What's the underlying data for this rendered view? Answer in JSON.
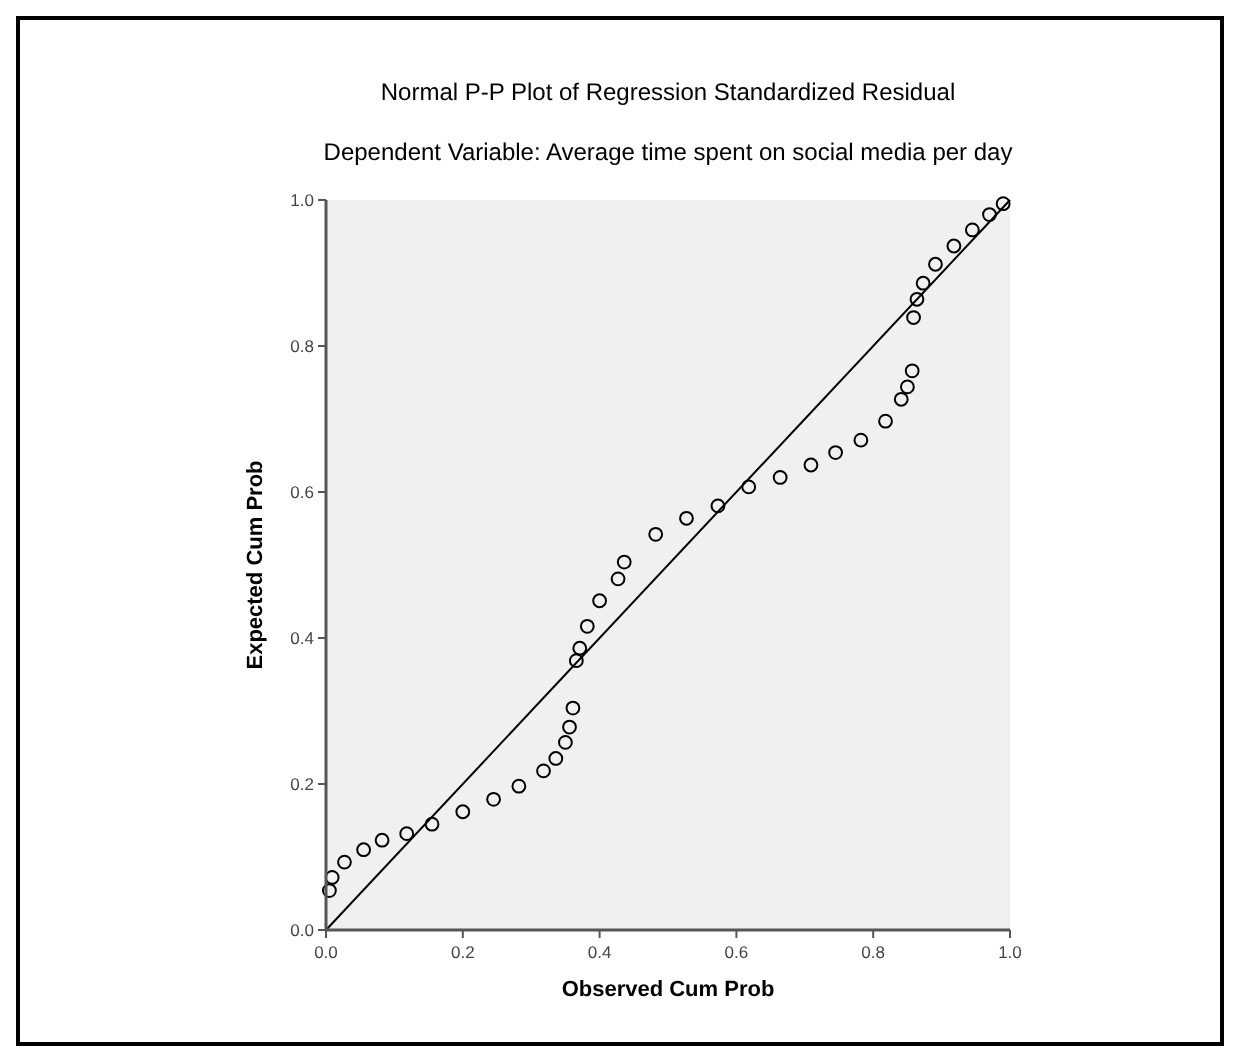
{
  "chart_data": {
    "type": "scatter",
    "title": "Normal P-P Plot of Regression Standardized Residual",
    "subtitle": "Dependent Variable: Average time spent on social media per day",
    "xlabel": "Observed Cum Prob",
    "ylabel": "Expected Cum Prob",
    "xlim": [
      0,
      1
    ],
    "ylim": [
      0,
      1
    ],
    "xticks": [
      {
        "value": 0,
        "label": "0.0"
      },
      {
        "value": 0.2,
        "label": "0.2"
      },
      {
        "value": 0.4,
        "label": "0.4"
      },
      {
        "value": 0.6,
        "label": "0.6"
      },
      {
        "value": 0.8,
        "label": "0.8"
      },
      {
        "value": 1,
        "label": "1.0"
      }
    ],
    "yticks": [
      {
        "value": 0,
        "label": "0.0"
      },
      {
        "value": 0.2,
        "label": "0.2"
      },
      {
        "value": 0.4,
        "label": "0.4"
      },
      {
        "value": 0.6,
        "label": "0.6"
      },
      {
        "value": 0.8,
        "label": "0.8"
      },
      {
        "value": 1,
        "label": "1.0"
      }
    ],
    "marker": "circle",
    "grid": false,
    "series": [
      {
        "color": "#000000",
        "x": [
          0.005,
          0.009,
          0.027,
          0.055,
          0.082,
          0.118,
          0.155,
          0.2,
          0.245,
          0.282,
          0.318,
          0.336,
          0.35,
          0.356,
          0.361,
          0.366,
          0.371,
          0.382,
          0.4,
          0.427,
          0.436,
          0.482,
          0.527,
          0.573,
          0.618,
          0.664,
          0.709,
          0.745,
          0.782,
          0.818,
          0.841,
          0.85,
          0.857,
          0.859,
          0.864,
          0.873,
          0.891,
          0.918,
          0.945,
          0.97,
          0.99
        ],
        "values": [
          0.054,
          0.072,
          0.093,
          0.11,
          0.123,
          0.132,
          0.145,
          0.162,
          0.179,
          0.197,
          0.218,
          0.235,
          0.257,
          0.278,
          0.304,
          0.369,
          0.386,
          0.416,
          0.451,
          0.481,
          0.504,
          0.542,
          0.564,
          0.581,
          0.607,
          0.62,
          0.637,
          0.654,
          0.671,
          0.697,
          0.727,
          0.744,
          0.766,
          0.839,
          0.864,
          0.886,
          0.912,
          0.937,
          0.959,
          0.98,
          0.995
        ]
      },
      {
        "type": "line",
        "marker": "none",
        "color": "#000000",
        "x": [
          0,
          1
        ],
        "values": [
          0,
          1
        ]
      }
    ]
  }
}
